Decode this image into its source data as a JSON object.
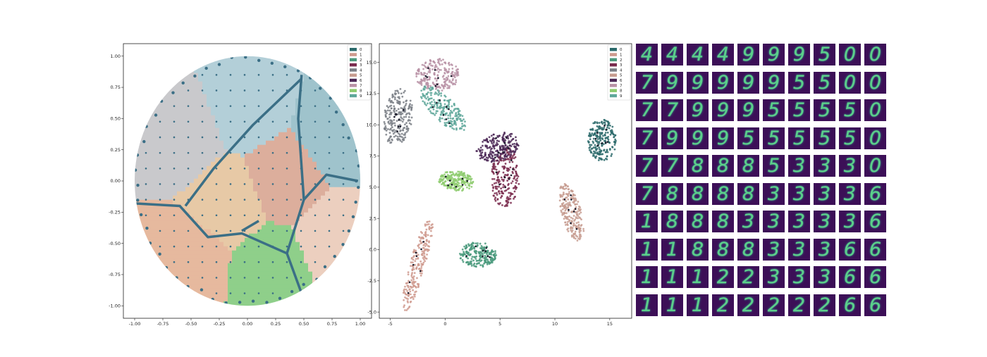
{
  "chart_data": [
    {
      "type": "scatter",
      "description_shape": "circular disk partitioned into 10 cluster regions",
      "xlim": [
        -1.1,
        1.1
      ],
      "ylim": [
        -1.1,
        1.1
      ],
      "xticks": [
        "-1.00",
        "-0.75",
        "-0.50",
        "-0.25",
        "0.00",
        "0.25",
        "0.50",
        "0.75",
        "1.00"
      ],
      "yticks": [
        "1.00",
        "0.75",
        "0.50",
        "0.25",
        "0.00",
        "-0.25",
        "-0.50",
        "-0.75",
        "-1.00"
      ],
      "legend_position": "top-right",
      "legend": [
        "0",
        "1",
        "2",
        "3",
        "4",
        "5",
        "6",
        "7",
        "8",
        "9"
      ],
      "regions": [
        {
          "label": "4",
          "color": "#c9c9cc",
          "seed": [
            -0.6,
            0.35
          ]
        },
        {
          "label": "9",
          "color": "#b3cfd8",
          "seed": [
            0.0,
            0.6
          ]
        },
        {
          "label": "0",
          "color": "#9fc3cc",
          "seed": [
            0.75,
            0.4
          ]
        },
        {
          "label": "5",
          "color": "#dcae9c",
          "seed": [
            0.3,
            0.05
          ]
        },
        {
          "label": "3",
          "color": "#e7c9a6",
          "seed": [
            -0.2,
            -0.15
          ]
        },
        {
          "label": "8",
          "color": "#eccfbf",
          "seed": [
            0.75,
            -0.45
          ]
        },
        {
          "label": "1",
          "color": "#e6b99e",
          "seed": [
            -0.55,
            -0.6
          ]
        },
        {
          "label": "2",
          "color": "#8fcf8a",
          "seed": [
            0.2,
            -0.7
          ]
        }
      ]
    },
    {
      "type": "scatter",
      "xlim": [
        -6,
        17
      ],
      "ylim": [
        -5.5,
        16.5
      ],
      "xticks": [
        "-5",
        "0",
        "5",
        "10",
        "15"
      ],
      "yticks": [
        "15.0",
        "12.5",
        "10.0",
        "7.5",
        "5.0",
        "2.5",
        "0.0",
        "-2.5",
        "-5.0"
      ],
      "legend_position": "top-right",
      "legend": [
        "0",
        "1",
        "2",
        "3",
        "4",
        "5",
        "6",
        "7",
        "8",
        "9"
      ],
      "clusters": [
        {
          "label": "0",
          "cx": 14.3,
          "cy": 8.8,
          "rx": 1.3,
          "ry": 1.7,
          "rot": 0,
          "color": "#2b6a6b"
        },
        {
          "label": "1",
          "cx": -2.5,
          "cy": -1.2,
          "rx": 4.0,
          "ry": 0.7,
          "rot": 72,
          "color": "#cf9a8e"
        },
        {
          "label": "2",
          "cx": 3.0,
          "cy": -0.4,
          "rx": 1.7,
          "ry": 1.0,
          "rot": 0,
          "color": "#4a9a7c"
        },
        {
          "label": "3",
          "cx": 5.5,
          "cy": 5.8,
          "rx": 1.3,
          "ry": 2.4,
          "rot": -5,
          "color": "#7a2c4e"
        },
        {
          "label": "4",
          "cx": -4.3,
          "cy": 10.6,
          "rx": 1.3,
          "ry": 2.3,
          "rot": -10,
          "color": "#7a7f86"
        },
        {
          "label": "5",
          "cx": 11.5,
          "cy": 3.0,
          "rx": 0.9,
          "ry": 2.4,
          "rot": 18,
          "color": "#c79c90"
        },
        {
          "label": "6",
          "cx": 4.8,
          "cy": 8.2,
          "rx": 2.0,
          "ry": 1.1,
          "rot": 15,
          "color": "#4b2856"
        },
        {
          "label": "7",
          "cx": -0.7,
          "cy": 14.0,
          "rx": 2.0,
          "ry": 1.3,
          "rot": 0,
          "color": "#b992a6"
        },
        {
          "label": "8",
          "cx": 1.0,
          "cy": 5.5,
          "rx": 1.6,
          "ry": 0.8,
          "rot": -5,
          "color": "#8ecb6f"
        },
        {
          "label": "9",
          "cx": -0.2,
          "cy": 11.3,
          "rx": 2.6,
          "ry": 1.0,
          "rot": -40,
          "color": "#5ea79a"
        }
      ]
    }
  ],
  "digit_grid": {
    "rows": [
      [
        "4",
        "4",
        "4",
        "4",
        "9",
        "9",
        "9",
        "5",
        "0",
        "0"
      ],
      [
        "7",
        "9",
        "9",
        "9",
        "9",
        "9",
        "5",
        "5",
        "0",
        "0"
      ],
      [
        "7",
        "7",
        "9",
        "9",
        "9",
        "5",
        "5",
        "5",
        "5",
        "0"
      ],
      [
        "7",
        "9",
        "9",
        "9",
        "5",
        "5",
        "5",
        "5",
        "5",
        "0"
      ],
      [
        "7",
        "7",
        "8",
        "8",
        "8",
        "5",
        "3",
        "3",
        "3",
        "0"
      ],
      [
        "7",
        "8",
        "8",
        "8",
        "8",
        "3",
        "3",
        "3",
        "3",
        "6"
      ],
      [
        "1",
        "8",
        "8",
        "8",
        "3",
        "3",
        "3",
        "3",
        "3",
        "6"
      ],
      [
        "1",
        "1",
        "8",
        "8",
        "8",
        "3",
        "3",
        "3",
        "6",
        "6"
      ],
      [
        "1",
        "1",
        "1",
        "2",
        "2",
        "3",
        "3",
        "3",
        "6",
        "6"
      ],
      [
        "1",
        "1",
        "1",
        "2",
        "2",
        "2",
        "2",
        "2",
        "6",
        "6"
      ]
    ]
  },
  "colors": {
    "node": "#3b6f86",
    "tile_bg": "#3c0f57",
    "digit": "#5bd08a"
  }
}
